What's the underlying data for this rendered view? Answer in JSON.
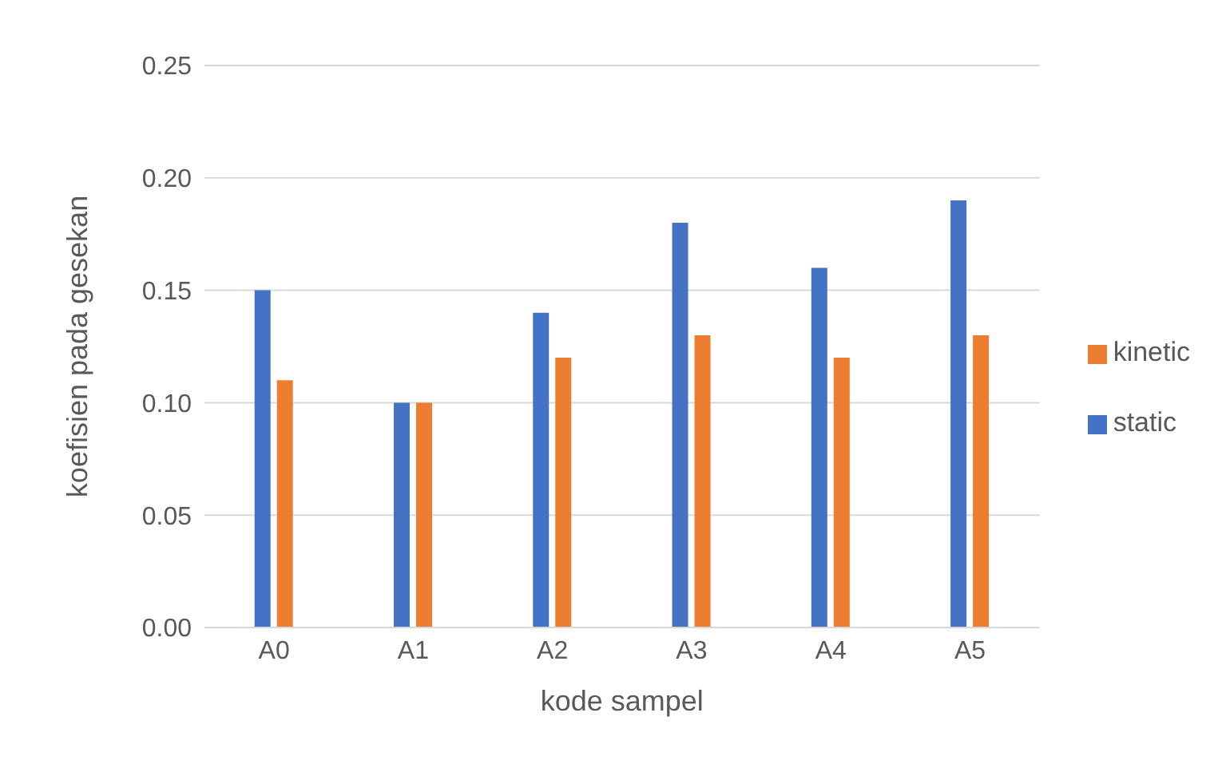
{
  "chart_data": {
    "type": "bar",
    "xlabel": "kode sampel",
    "ylabel": "koefisien pada gesekan",
    "categories": [
      "A0",
      "A1",
      "A2",
      "A3",
      "A4",
      "A5"
    ],
    "series": [
      {
        "name": "static",
        "color": "#4472c4",
        "values": [
          0.15,
          0.1,
          0.14,
          0.18,
          0.16,
          0.19
        ]
      },
      {
        "name": "kinetic",
        "color": "#ed7d31",
        "values": [
          0.11,
          0.1,
          0.12,
          0.13,
          0.12,
          0.13
        ]
      }
    ],
    "ylim": [
      0,
      0.25
    ],
    "yticks": [
      {
        "value": 0,
        "label": "0.00"
      },
      {
        "value": 0.05,
        "label": "0.05"
      },
      {
        "value": 0.1,
        "label": "0.10"
      },
      {
        "value": 0.15,
        "label": "0.15"
      },
      {
        "value": 0.2,
        "label": "0.20"
      },
      {
        "value": 0.25,
        "label": "0.25"
      }
    ],
    "grid": "y",
    "legend": "right"
  }
}
